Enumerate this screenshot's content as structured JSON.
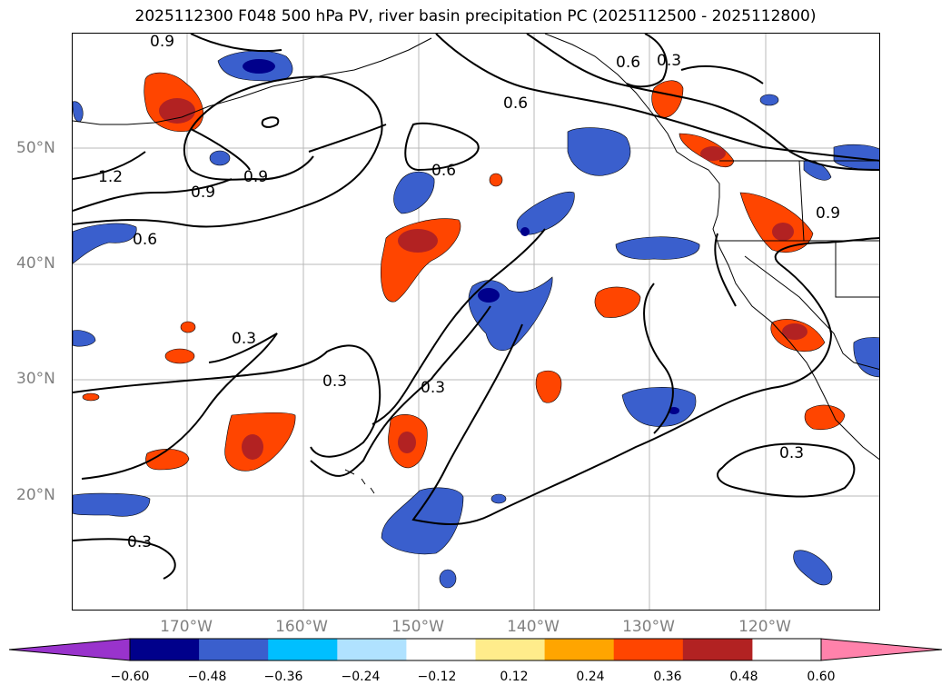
{
  "title": "2025112300 F048 500 hPa PV, river basin precipitation PC (2025112500 - 2025112800)",
  "x_ticks": [
    "170°W",
    "160°W",
    "150°W",
    "140°W",
    "130°W",
    "120°W"
  ],
  "y_ticks": [
    "50°N",
    "40°N",
    "30°N",
    "20°N"
  ],
  "colorbar": {
    "labels": [
      "−0.60",
      "−0.48",
      "−0.36",
      "−0.24",
      "−0.12",
      "0.12",
      "0.24",
      "0.36",
      "0.48",
      "0.60"
    ],
    "colors": [
      "#9933cc",
      "#00008b",
      "#3a5fcd",
      "#00bfff",
      "#b0e2ff",
      "#ffffff",
      "#ffec8b",
      "#ffa500",
      "#ff4500",
      "#b22222",
      "#ff82ab"
    ]
  },
  "contour_labels": [
    "0.9",
    "0.6",
    "0.3",
    "0.6",
    "1.2",
    "0.9",
    "0.9",
    "0.6",
    "0.6",
    "0.9",
    "0.3",
    "0.3",
    "0.3",
    "0.3",
    "0.3"
  ],
  "chart_data": {
    "type": "heatmap",
    "title": "2025112300 F048 500 hPa PV, river basin precipitation PC (2025112500 - 2025112800)",
    "lon_ticks": [
      "170°W",
      "160°W",
      "150°W",
      "140°W",
      "130°W",
      "120°W"
    ],
    "lat_ticks": [
      "50°N",
      "40°N",
      "30°N",
      "20°N"
    ],
    "color_levels": [
      -0.6,
      -0.48,
      -0.36,
      -0.24,
      -0.12,
      0.12,
      0.24,
      0.36,
      0.48,
      0.6
    ],
    "grid": true
  }
}
